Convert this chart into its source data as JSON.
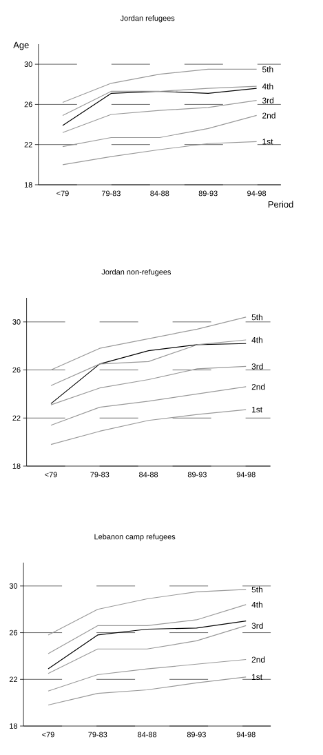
{
  "chart_data": [
    {
      "type": "line",
      "title": "Jordan refugees",
      "xlabel": "Period",
      "ylabel": "Age",
      "categories": [
        "<79",
        "79-83",
        "84-88",
        "89-93",
        "94-98"
      ],
      "ylim": [
        18,
        32
      ],
      "yticks": [
        18,
        22,
        26,
        30
      ],
      "grid": "y",
      "series": [
        {
          "name": "5th",
          "color": "#999999",
          "values": [
            26.2,
            28.1,
            29.0,
            29.5,
            29.5
          ]
        },
        {
          "name": "4th",
          "color": "#999999",
          "values": [
            24.9,
            27.3,
            27.3,
            27.6,
            27.8
          ]
        },
        {
          "color": "#000000",
          "values": [
            23.9,
            27.1,
            27.3,
            27.1,
            27.6
          ]
        },
        {
          "name": "3rd",
          "color": "#999999",
          "values": [
            23.2,
            25.0,
            25.4,
            25.7,
            26.4
          ]
        },
        {
          "name": "2nd",
          "color": "#999999",
          "values": [
            21.8,
            22.7,
            22.7,
            23.6,
            24.9
          ]
        },
        {
          "name": "1st",
          "color": "#999999",
          "values": [
            20.0,
            20.8,
            21.5,
            22.1,
            22.3
          ]
        }
      ]
    },
    {
      "type": "line",
      "title": "Jordan non-refugees",
      "categories": [
        "<79",
        "79-83",
        "84-88",
        "89-93",
        "94-98"
      ],
      "ylim": [
        18,
        32
      ],
      "yticks": [
        18,
        22,
        26,
        30
      ],
      "grid": "y",
      "series": [
        {
          "name": "5th",
          "color": "#999999",
          "values": [
            26.0,
            27.8,
            28.6,
            29.4,
            30.4
          ]
        },
        {
          "name": "4th",
          "color": "#999999",
          "values": [
            24.7,
            26.5,
            26.7,
            28.1,
            28.5
          ]
        },
        {
          "color": "#000000",
          "values": [
            23.2,
            26.5,
            27.6,
            28.1,
            28.2
          ]
        },
        {
          "name": "3rd",
          "color": "#999999",
          "values": [
            23.1,
            24.5,
            25.2,
            26.1,
            26.3
          ]
        },
        {
          "name": "2nd",
          "color": "#999999",
          "values": [
            21.4,
            22.9,
            23.4,
            24.0,
            24.6
          ]
        },
        {
          "name": "1st",
          "color": "#999999",
          "values": [
            19.8,
            20.9,
            21.8,
            22.3,
            22.7
          ]
        }
      ]
    },
    {
      "type": "line",
      "title": "Lebanon camp refugees",
      "categories": [
        "<79",
        "79-83",
        "84-88",
        "89-93",
        "94-98"
      ],
      "ylim": [
        18,
        32
      ],
      "yticks": [
        18,
        22,
        26,
        30
      ],
      "grid": "y",
      "series": [
        {
          "name": "5th",
          "color": "#999999",
          "values": [
            25.8,
            28.0,
            28.9,
            29.5,
            29.7
          ]
        },
        {
          "name": "4th",
          "color": "#999999",
          "values": [
            24.2,
            26.6,
            26.6,
            27.1,
            28.4
          ]
        },
        {
          "color": "#000000",
          "values": [
            22.9,
            25.8,
            26.3,
            26.4,
            27.0
          ]
        },
        {
          "name": "3rd",
          "color": "#999999",
          "values": [
            22.5,
            24.6,
            24.6,
            25.3,
            26.6
          ]
        },
        {
          "name": "2nd",
          "color": "#999999",
          "values": [
            21.0,
            22.4,
            22.9,
            23.3,
            23.7
          ]
        },
        {
          "name": "1st",
          "color": "#999999",
          "values": [
            19.8,
            20.8,
            21.1,
            21.7,
            22.2
          ]
        }
      ]
    }
  ]
}
